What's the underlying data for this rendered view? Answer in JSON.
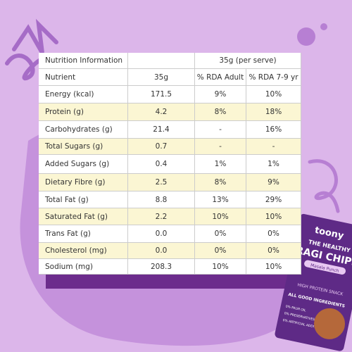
{
  "table": {
    "title_row": [
      "Nutrition Information",
      "35g (per serve)"
    ],
    "columns": [
      "Nutrient",
      "35g",
      "% RDA Adult",
      "% RDA 7-9 yr"
    ],
    "rows": [
      [
        "Energy (kcal)",
        "171.5",
        "9%",
        "10%"
      ],
      [
        "Protein (g)",
        "4.2",
        "8%",
        "18%"
      ],
      [
        "Carbohydrates (g)",
        "21.4",
        "-",
        "16%"
      ],
      [
        "Total Sugars (g)",
        "0.7",
        "-",
        "-"
      ],
      [
        "Added Sugars (g)",
        "0.4",
        "1%",
        "1%"
      ],
      [
        "Dietary Fibre (g)",
        "2.5",
        "8%",
        "9%"
      ],
      [
        "Total Fat (g)",
        "8.8",
        "13%",
        "29%"
      ],
      [
        "Saturated Fat (g)",
        "2.2",
        "10%",
        "10%"
      ],
      [
        "Trans Fat (g)",
        "0.0",
        "0%",
        "0%"
      ],
      [
        "Cholesterol (mg)",
        "0.0",
        "0%",
        "0%"
      ],
      [
        "Sodium (mg)",
        "208.3",
        "10%",
        "10%"
      ]
    ]
  },
  "pack": {
    "brand": "toony",
    "line1": "THE HEALTHY",
    "line2": "RAGI CHIPS",
    "flavour": "Masala Punch",
    "tagline": "HIGH PROTEIN SNACK",
    "badge": "ALL GOOD INGREDIENTS",
    "claims": [
      "0% PALM OIL",
      "0% PRESERVATIVES",
      "0% ARTIFICIAL ADDITIVES"
    ]
  }
}
